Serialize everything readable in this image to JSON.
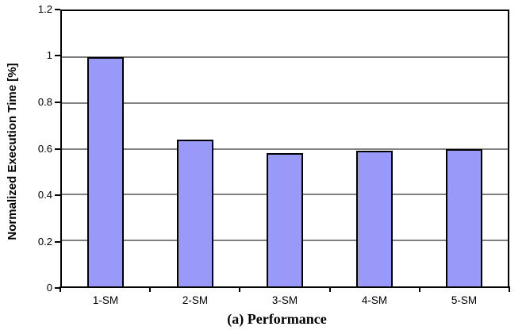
{
  "chart_data": {
    "type": "bar",
    "categories": [
      "1-SM",
      "2-SM",
      "3-SM",
      "4-SM",
      "5-SM"
    ],
    "values": [
      1.0,
      0.64,
      0.58,
      0.59,
      0.6
    ],
    "title": "",
    "xlabel": "(a) Performance",
    "ylabel": "Normalized Execution Time [%]",
    "ylim": [
      0,
      1.2
    ],
    "yticks": [
      0,
      0.2,
      0.4,
      0.6,
      0.8,
      1,
      1.2
    ],
    "ytick_labels": [
      "0",
      "0.2",
      "0.4",
      "0.6",
      "0.8",
      "1",
      "1.2"
    ],
    "grid": true,
    "legend": "none",
    "colors": {
      "bar_fill": "#9999FA",
      "bar_border": "#000000",
      "gridline": "#808080",
      "axis": "#000000",
      "background": "#FFFFFF"
    }
  }
}
